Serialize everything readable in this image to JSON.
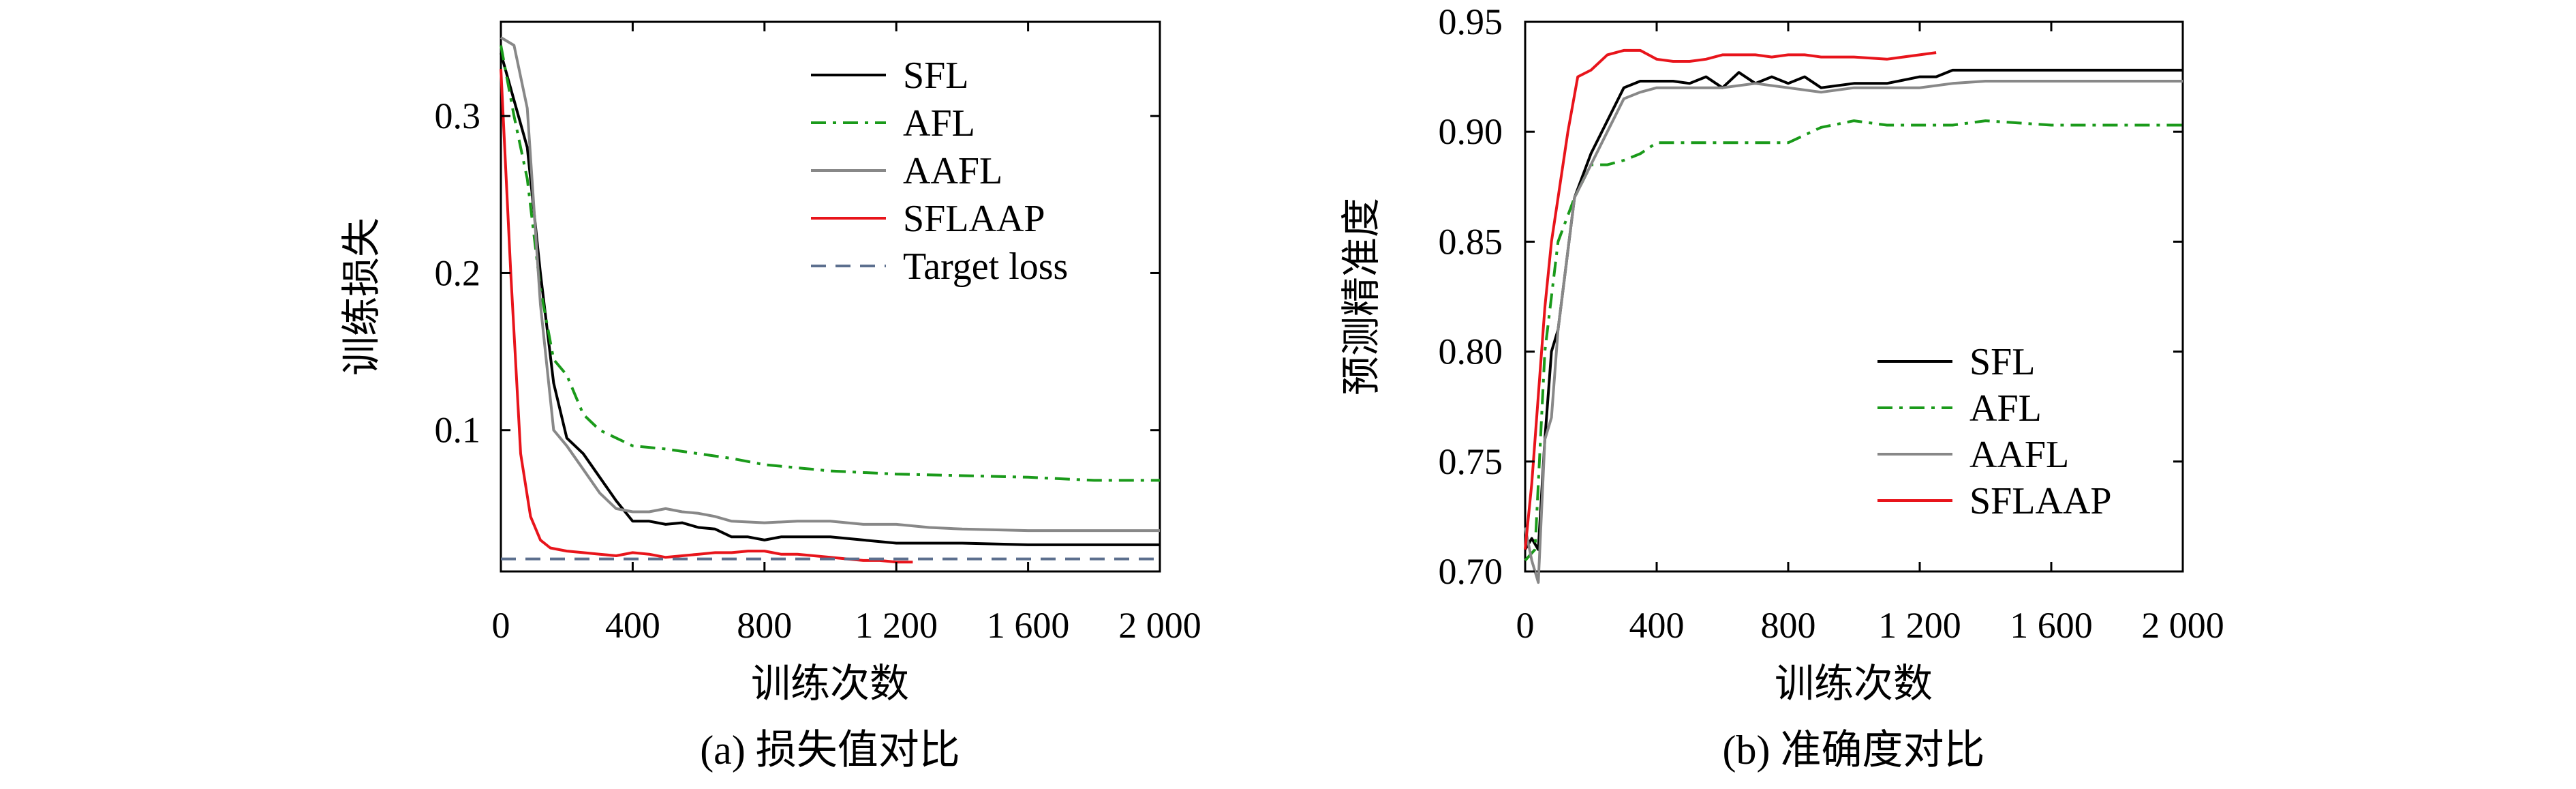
{
  "figure": {
    "captions": [
      "(a) 损失值对比",
      "(b) 准确度对比"
    ]
  },
  "chart_data": [
    {
      "type": "line",
      "xlabel": "训练次数",
      "ylabel": "训练损失",
      "xlim": [
        0,
        2000
      ],
      "ylim": [
        0.01,
        0.36
      ],
      "xticks": [
        0,
        400,
        800,
        1200,
        1600,
        2000
      ],
      "xtick_labels": [
        "0",
        "400",
        "800",
        "1 200",
        "1 600",
        "2 000"
      ],
      "yticks": [
        0.1,
        0.2,
        0.3
      ],
      "ytick_labels": [
        "0.1",
        "0.2",
        "0.3"
      ],
      "grid": false,
      "legend_position": "top-right",
      "series": [
        {
          "name": "SFL",
          "color": "#000000",
          "dash": "solid",
          "x": [
            0,
            40,
            80,
            120,
            160,
            200,
            250,
            300,
            350,
            400,
            450,
            500,
            550,
            600,
            650,
            700,
            750,
            800,
            850,
            900,
            1000,
            1100,
            1200,
            1400,
            1600,
            1800,
            2000
          ],
          "y": [
            0.34,
            0.31,
            0.28,
            0.2,
            0.13,
            0.095,
            0.085,
            0.07,
            0.055,
            0.042,
            0.042,
            0.04,
            0.041,
            0.038,
            0.037,
            0.032,
            0.032,
            0.03,
            0.032,
            0.032,
            0.032,
            0.03,
            0.028,
            0.028,
            0.027,
            0.027,
            0.027
          ]
        },
        {
          "name": "AFL",
          "color": "#1a9a1a",
          "dash": "dashdot",
          "x": [
            0,
            40,
            80,
            120,
            160,
            200,
            250,
            300,
            350,
            400,
            500,
            600,
            700,
            800,
            900,
            1000,
            1200,
            1400,
            1600,
            1800,
            2000
          ],
          "y": [
            0.345,
            0.3,
            0.26,
            0.19,
            0.145,
            0.135,
            0.11,
            0.1,
            0.095,
            0.09,
            0.088,
            0.085,
            0.082,
            0.078,
            0.076,
            0.074,
            0.072,
            0.071,
            0.07,
            0.068,
            0.068
          ]
        },
        {
          "name": "AAFL",
          "color": "#888888",
          "dash": "solid",
          "x": [
            0,
            40,
            80,
            120,
            160,
            200,
            250,
            300,
            350,
            400,
            450,
            500,
            550,
            600,
            650,
            700,
            800,
            900,
            1000,
            1100,
            1200,
            1300,
            1400,
            1600,
            1800,
            2000
          ],
          "y": [
            0.35,
            0.345,
            0.305,
            0.18,
            0.1,
            0.09,
            0.075,
            0.06,
            0.05,
            0.048,
            0.048,
            0.05,
            0.048,
            0.047,
            0.045,
            0.042,
            0.041,
            0.042,
            0.042,
            0.04,
            0.04,
            0.038,
            0.037,
            0.036,
            0.036,
            0.036
          ]
        },
        {
          "name": "SFLAAP",
          "color": "#e8141b",
          "dash": "solid",
          "x": [
            0,
            30,
            60,
            90,
            120,
            150,
            200,
            250,
            300,
            350,
            400,
            450,
            500,
            550,
            600,
            650,
            700,
            750,
            800,
            850,
            900,
            950,
            1000,
            1050,
            1100,
            1150,
            1200,
            1250
          ],
          "y": [
            0.33,
            0.2,
            0.085,
            0.045,
            0.03,
            0.025,
            0.023,
            0.022,
            0.021,
            0.02,
            0.022,
            0.021,
            0.019,
            0.02,
            0.021,
            0.022,
            0.022,
            0.023,
            0.023,
            0.021,
            0.021,
            0.02,
            0.019,
            0.018,
            0.017,
            0.017,
            0.016,
            0.016
          ]
        },
        {
          "name": "Target loss",
          "color": "#5c6f8e",
          "dash": "dashed",
          "x": [
            0,
            2000
          ],
          "y": [
            0.018,
            0.018
          ]
        }
      ]
    },
    {
      "type": "line",
      "xlabel": "训练次数",
      "ylabel": "预测精准度",
      "xlim": [
        0,
        2000
      ],
      "ylim": [
        0.7,
        0.95
      ],
      "xticks": [
        0,
        400,
        800,
        1200,
        1600,
        2000
      ],
      "xtick_labels": [
        "0",
        "400",
        "800",
        "1 200",
        "1 600",
        "2 000"
      ],
      "yticks": [
        0.7,
        0.75,
        0.8,
        0.85,
        0.9,
        0.95
      ],
      "ytick_labels": [
        "0.70",
        "0.75",
        "0.80",
        "0.85",
        "0.90",
        "0.95"
      ],
      "grid": false,
      "legend_position": "bottom-right",
      "series": [
        {
          "name": "SFL",
          "color": "#000000",
          "dash": "solid",
          "x": [
            0,
            20,
            40,
            60,
            80,
            100,
            150,
            200,
            250,
            300,
            350,
            400,
            450,
            500,
            550,
            600,
            650,
            700,
            750,
            800,
            850,
            900,
            1000,
            1100,
            1200,
            1250,
            1300,
            1400,
            1500,
            1600,
            1800,
            2000
          ],
          "y": [
            0.71,
            0.715,
            0.71,
            0.76,
            0.8,
            0.81,
            0.87,
            0.89,
            0.905,
            0.92,
            0.923,
            0.923,
            0.923,
            0.922,
            0.925,
            0.92,
            0.927,
            0.922,
            0.925,
            0.922,
            0.925,
            0.92,
            0.922,
            0.922,
            0.925,
            0.925,
            0.928,
            0.928,
            0.928,
            0.928,
            0.928,
            0.928
          ]
        },
        {
          "name": "AFL",
          "color": "#1a9a1a",
          "dash": "dashdot",
          "x": [
            0,
            30,
            60,
            100,
            150,
            200,
            250,
            300,
            350,
            400,
            500,
            600,
            700,
            800,
            900,
            1000,
            1100,
            1200,
            1300,
            1400,
            1600,
            1800,
            2000
          ],
          "y": [
            0.705,
            0.71,
            0.8,
            0.85,
            0.87,
            0.885,
            0.885,
            0.887,
            0.89,
            0.895,
            0.895,
            0.895,
            0.895,
            0.895,
            0.902,
            0.905,
            0.903,
            0.903,
            0.903,
            0.905,
            0.903,
            0.903,
            0.903
          ]
        },
        {
          "name": "AAFL",
          "color": "#888888",
          "dash": "solid",
          "x": [
            0,
            20,
            40,
            60,
            80,
            100,
            150,
            200,
            250,
            300,
            350,
            400,
            450,
            500,
            600,
            700,
            800,
            900,
            1000,
            1100,
            1200,
            1300,
            1400,
            1600,
            1800,
            2000
          ],
          "y": [
            0.72,
            0.705,
            0.695,
            0.76,
            0.77,
            0.81,
            0.87,
            0.885,
            0.9,
            0.915,
            0.918,
            0.92,
            0.92,
            0.92,
            0.92,
            0.922,
            0.92,
            0.918,
            0.92,
            0.92,
            0.92,
            0.922,
            0.923,
            0.923,
            0.923,
            0.923
          ]
        },
        {
          "name": "SFLAAP",
          "color": "#e8141b",
          "dash": "solid",
          "x": [
            0,
            20,
            40,
            60,
            80,
            100,
            130,
            160,
            200,
            250,
            300,
            350,
            400,
            450,
            500,
            550,
            600,
            650,
            700,
            750,
            800,
            850,
            900,
            950,
            1000,
            1100,
            1200,
            1250
          ],
          "y": [
            0.71,
            0.74,
            0.78,
            0.82,
            0.85,
            0.87,
            0.9,
            0.925,
            0.928,
            0.935,
            0.937,
            0.937,
            0.933,
            0.932,
            0.932,
            0.933,
            0.935,
            0.935,
            0.935,
            0.934,
            0.935,
            0.935,
            0.934,
            0.934,
            0.934,
            0.933,
            0.935,
            0.936
          ]
        }
      ]
    }
  ]
}
